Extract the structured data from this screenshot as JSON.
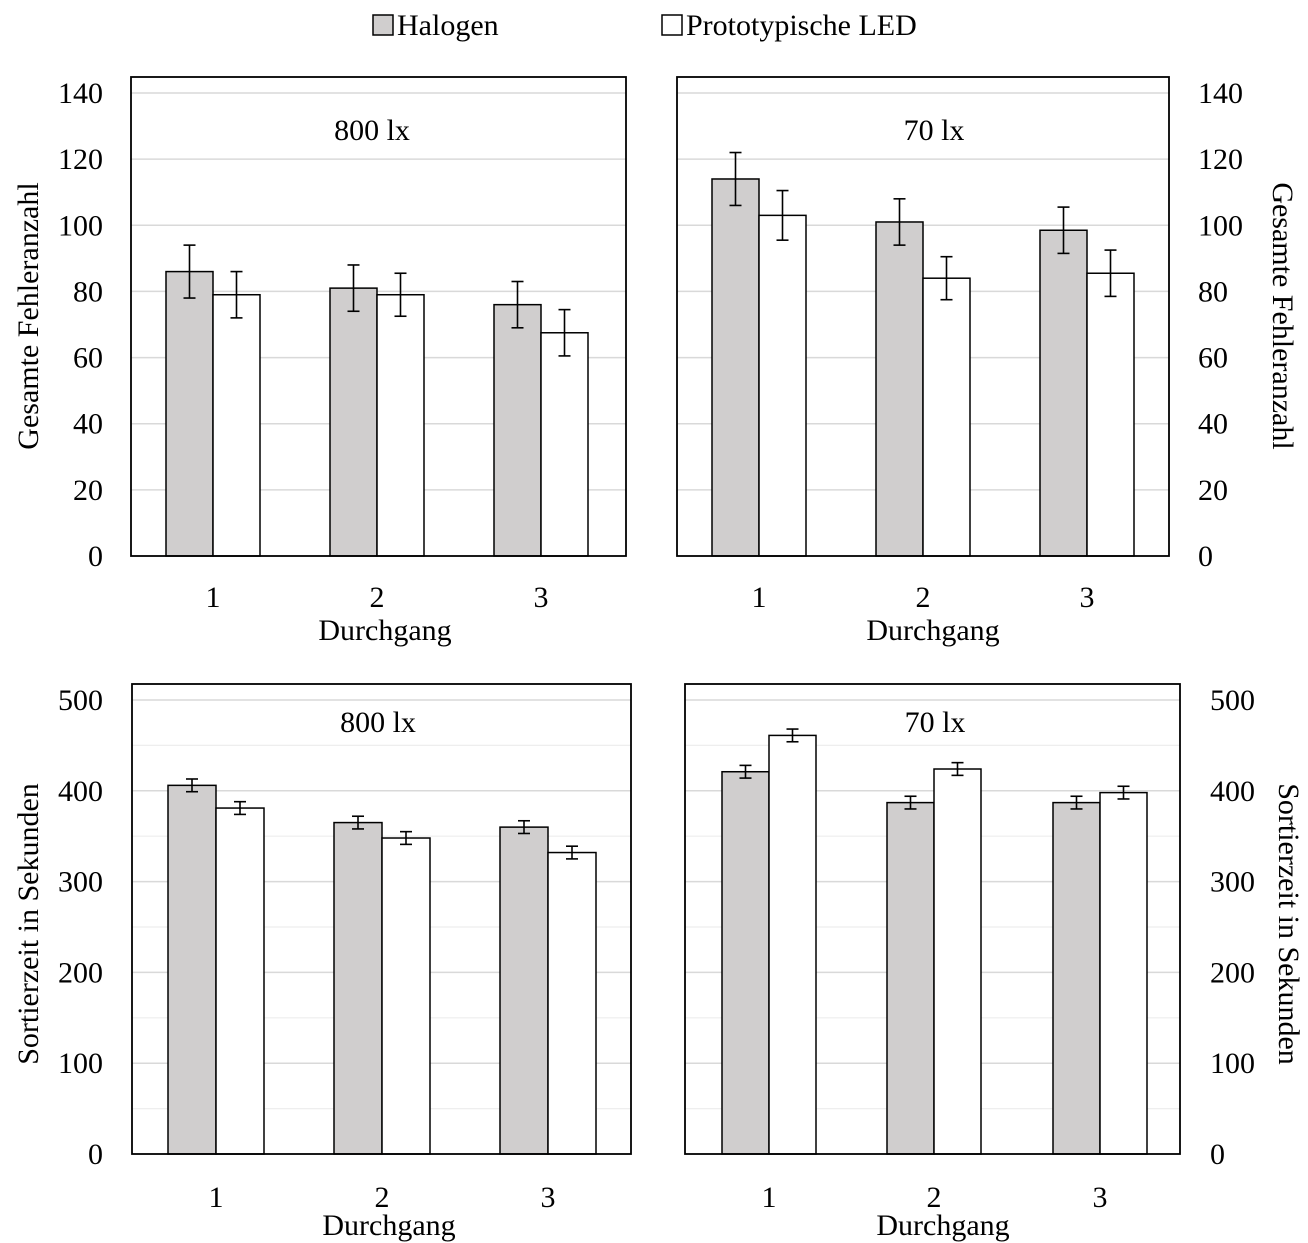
{
  "legend": {
    "items": [
      {
        "label": "Halogen",
        "color": "#d0cece"
      },
      {
        "label": "Prototypische LED",
        "color": "#ffffff"
      }
    ]
  },
  "chart_data": [
    {
      "type": "bar",
      "panel": "top-left",
      "annotation": "800 lx",
      "xlabel": "Durchgang",
      "ylabel": "Gesamte Fehleranzahl",
      "ylim": [
        0,
        140
      ],
      "yticks": [
        0,
        20,
        40,
        60,
        80,
        100,
        120,
        140
      ],
      "grid": true,
      "categories": [
        "1",
        "2",
        "3"
      ],
      "series": [
        {
          "name": "Halogen",
          "values": [
            86,
            81,
            76
          ],
          "error": [
            8,
            7,
            7
          ]
        },
        {
          "name": "Prototypische LED",
          "values": [
            79,
            79,
            67.5
          ],
          "error": [
            7,
            6.5,
            7
          ]
        }
      ]
    },
    {
      "type": "bar",
      "panel": "top-right",
      "annotation": "70 lx",
      "xlabel": "Durchgang",
      "ylabel": "Gesamte Fehleranzahl",
      "ylim": [
        0,
        140
      ],
      "yticks": [
        0,
        20,
        40,
        60,
        80,
        100,
        120,
        140
      ],
      "grid": true,
      "categories": [
        "1",
        "2",
        "3"
      ],
      "series": [
        {
          "name": "Halogen",
          "values": [
            114,
            101,
            98.5
          ],
          "error": [
            8,
            7,
            7
          ]
        },
        {
          "name": "Prototypische LED",
          "values": [
            103,
            84,
            85.5
          ],
          "error": [
            7.5,
            6.5,
            7
          ]
        }
      ]
    },
    {
      "type": "bar",
      "panel": "bottom-left",
      "annotation": "800 lx",
      "xlabel": "Durchgang",
      "ylabel": "Sortierzeit in Sekunden",
      "ylim": [
        0,
        500
      ],
      "yticks": [
        0,
        100,
        200,
        300,
        400,
        500
      ],
      "grid": true,
      "categories": [
        "1",
        "2",
        "3"
      ],
      "series": [
        {
          "name": "Halogen",
          "values": [
            406,
            365,
            360
          ],
          "error": [
            7,
            7,
            7
          ]
        },
        {
          "name": "Prototypische LED",
          "values": [
            381,
            348,
            332
          ],
          "error": [
            7,
            7,
            7
          ]
        }
      ]
    },
    {
      "type": "bar",
      "panel": "bottom-right",
      "annotation": "70 lx",
      "xlabel": "Durchgang",
      "ylabel": "Sortierzeit in Sekunden",
      "ylim": [
        0,
        500
      ],
      "yticks": [
        0,
        100,
        200,
        300,
        400,
        500
      ],
      "grid": true,
      "categories": [
        "1",
        "2",
        "3"
      ],
      "series": [
        {
          "name": "Halogen",
          "values": [
            421,
            387,
            387
          ],
          "error": [
            7,
            7,
            7
          ]
        },
        {
          "name": "Prototypische LED",
          "values": [
            461,
            424,
            398
          ],
          "error": [
            7,
            7,
            7
          ]
        }
      ]
    }
  ]
}
